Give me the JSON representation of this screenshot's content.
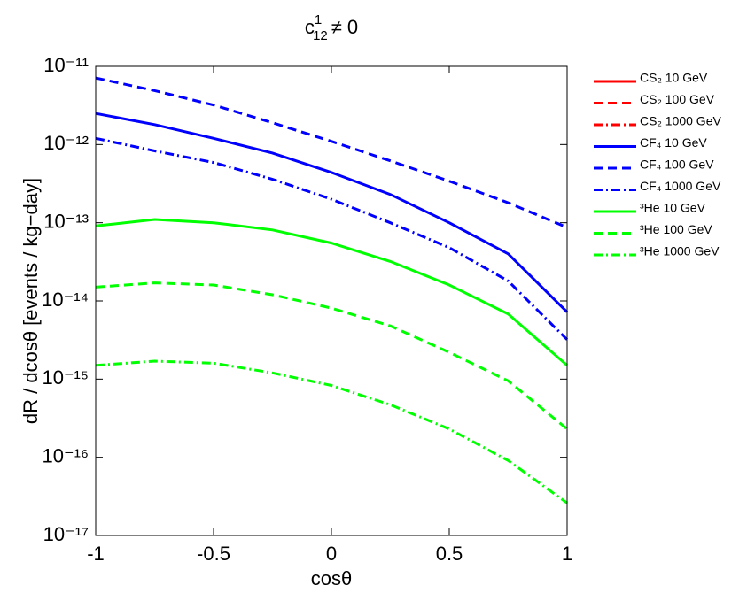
{
  "chart_data": {
    "type": "line",
    "title": {
      "base": "c",
      "sup": "1",
      "sub": "12",
      "rest": "≠ 0"
    },
    "xlabel": "cosθ",
    "ylabel": "dR / dcosθ  [events / kg−day]",
    "log_y": true,
    "grid": false,
    "legend": "outside-right",
    "x": [
      -1,
      -0.75,
      -0.5,
      -0.25,
      0,
      0.25,
      0.5,
      0.75,
      1
    ],
    "xlim": [
      -1,
      1
    ],
    "xticks": [
      -1,
      -0.5,
      0,
      0.5,
      1
    ],
    "ylim": [
      1e-17,
      1e-11
    ],
    "yticks": [
      {
        "value": 1e-17,
        "label": "10⁻¹⁷"
      },
      {
        "value": 1e-16,
        "label": "10⁻¹⁶"
      },
      {
        "value": 1e-15,
        "label": "10⁻¹⁵"
      },
      {
        "value": 1e-14,
        "label": "10⁻¹⁴"
      },
      {
        "value": 1e-13,
        "label": "10⁻¹³"
      },
      {
        "value": 1e-12,
        "label": "10⁻¹²"
      },
      {
        "value": 1e-11,
        "label": "10⁻¹¹"
      }
    ],
    "series": [
      {
        "name": "CS₂ 10 GeV",
        "color": "#ff0000",
        "dash": "solid",
        "values": [
          null,
          null,
          null,
          null,
          null,
          null,
          null,
          null,
          null
        ]
      },
      {
        "name": "CS₂ 100 GeV",
        "color": "#ff0000",
        "dash": "dashed",
        "values": [
          null,
          null,
          null,
          null,
          null,
          null,
          null,
          null,
          null
        ]
      },
      {
        "name": "CS₂ 1000 GeV",
        "color": "#ff0000",
        "dash": "dashdot",
        "values": [
          null,
          null,
          null,
          null,
          null,
          null,
          null,
          null,
          null
        ]
      },
      {
        "name": "CF₄ 10 GeV",
        "color": "#0000ff",
        "dash": "solid",
        "values": [
          2.5e-12,
          1.8e-12,
          1.2e-12,
          7.8e-13,
          4.4e-13,
          2.3e-13,
          1e-13,
          4e-14,
          7.2e-15
        ]
      },
      {
        "name": "CF₄ 100 GeV",
        "color": "#0000ff",
        "dash": "dashed",
        "values": [
          7.1e-12,
          4.9e-12,
          3.2e-12,
          1.9e-12,
          1.1e-12,
          6.2e-13,
          3.4e-13,
          1.8e-13,
          8.7e-14
        ]
      },
      {
        "name": "CF₄ 1000 GeV",
        "color": "#0000ff",
        "dash": "dashdot",
        "values": [
          1.2e-12,
          8.3e-13,
          5.9e-13,
          3.6e-13,
          2e-13,
          1e-13,
          4.8e-14,
          1.8e-14,
          3.2e-15
        ]
      },
      {
        "name": "³He 10 GeV",
        "color": "#00ff00",
        "dash": "solid",
        "values": [
          9.1e-14,
          1.1e-13,
          1e-13,
          8.1e-14,
          5.5e-14,
          3.2e-14,
          1.6e-14,
          6.8e-15,
          1.5e-15
        ]
      },
      {
        "name": "³He 100 GeV",
        "color": "#00ff00",
        "dash": "dashed",
        "values": [
          1.5e-14,
          1.7e-14,
          1.6e-14,
          1.2e-14,
          8.1e-15,
          4.8e-15,
          2.2e-15,
          9.5e-16,
          2.3e-16
        ]
      },
      {
        "name": "³He 1000 GeV",
        "color": "#00ff00",
        "dash": "dashdot",
        "values": [
          1.5e-15,
          1.7e-15,
          1.6e-15,
          1.2e-15,
          8.3e-16,
          4.7e-16,
          2.3e-16,
          9.1e-17,
          2.6e-17
        ]
      }
    ]
  }
}
